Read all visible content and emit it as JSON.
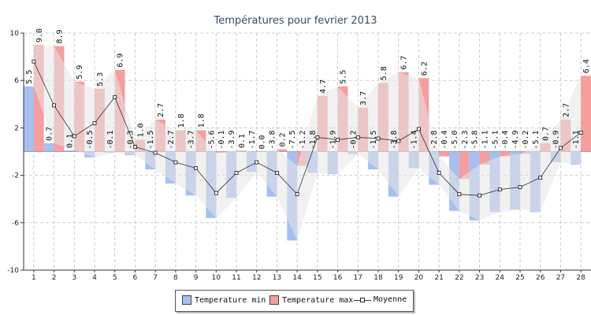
{
  "chart_data": {
    "type": "bar",
    "title": "Températures pour fevrier 2013",
    "categories": [
      "1",
      "2",
      "3",
      "4",
      "5",
      "6",
      "7",
      "8",
      "9",
      "10",
      "11",
      "12",
      "13",
      "14",
      "15",
      "16",
      "17",
      "18",
      "19",
      "20",
      "21",
      "22",
      "23",
      "24",
      "25",
      "26",
      "27",
      "28"
    ],
    "ylim": [
      -10,
      10
    ],
    "yticks": [
      "10",
      "6",
      "2",
      "-2",
      "-6",
      "-10"
    ],
    "ytick_values": [
      10,
      6,
      2,
      -2,
      -6,
      -10
    ],
    "grid": true,
    "legend_position": "bottom-center",
    "colors": {
      "min": "#a6bff0",
      "max": "#f49e9e",
      "band": "#e6e6e6",
      "line": "#333333",
      "title": "#3c4a6a"
    },
    "series": [
      {
        "name": "Temperature min",
        "values": [
          5.5,
          0.7,
          0.1,
          -0.5,
          -0.1,
          -0.3,
          -1.5,
          -2.7,
          -3.7,
          -5.6,
          -3.9,
          -1.7,
          -3.8,
          -7.5,
          -1.8,
          -1.9,
          -0.2,
          -1.5,
          -3.8,
          -1.4,
          -2.8,
          -5.0,
          -5.8,
          -5.1,
          -4.9,
          -5.1,
          -0.9,
          -1.1
        ]
      },
      {
        "name": "Temperature max",
        "values": [
          9.0,
          8.9,
          5.9,
          5.3,
          6.9,
          1.0,
          2.7,
          1.8,
          1.8,
          -0.1,
          0.1,
          0.0,
          0.2,
          -1.2,
          4.7,
          5.5,
          3.7,
          5.8,
          6.7,
          6.2,
          -0.4,
          -2.3,
          -1.1,
          -0.4,
          -0.2,
          0.7,
          2.7,
          6.4
        ]
      },
      {
        "name": "Moyenne",
        "values": [
          7.6,
          3.9,
          1.3,
          2.4,
          4.6,
          0.4,
          -0.1,
          -0.9,
          -1.4,
          -3.5,
          -1.8,
          -0.9,
          -1.8,
          -3.6,
          1.2,
          1.0,
          1.2,
          1.1,
          0.9,
          1.9,
          -1.8,
          -3.6,
          -3.7,
          -3.2,
          -3.0,
          -2.2,
          0.3,
          1.6
        ]
      }
    ]
  }
}
